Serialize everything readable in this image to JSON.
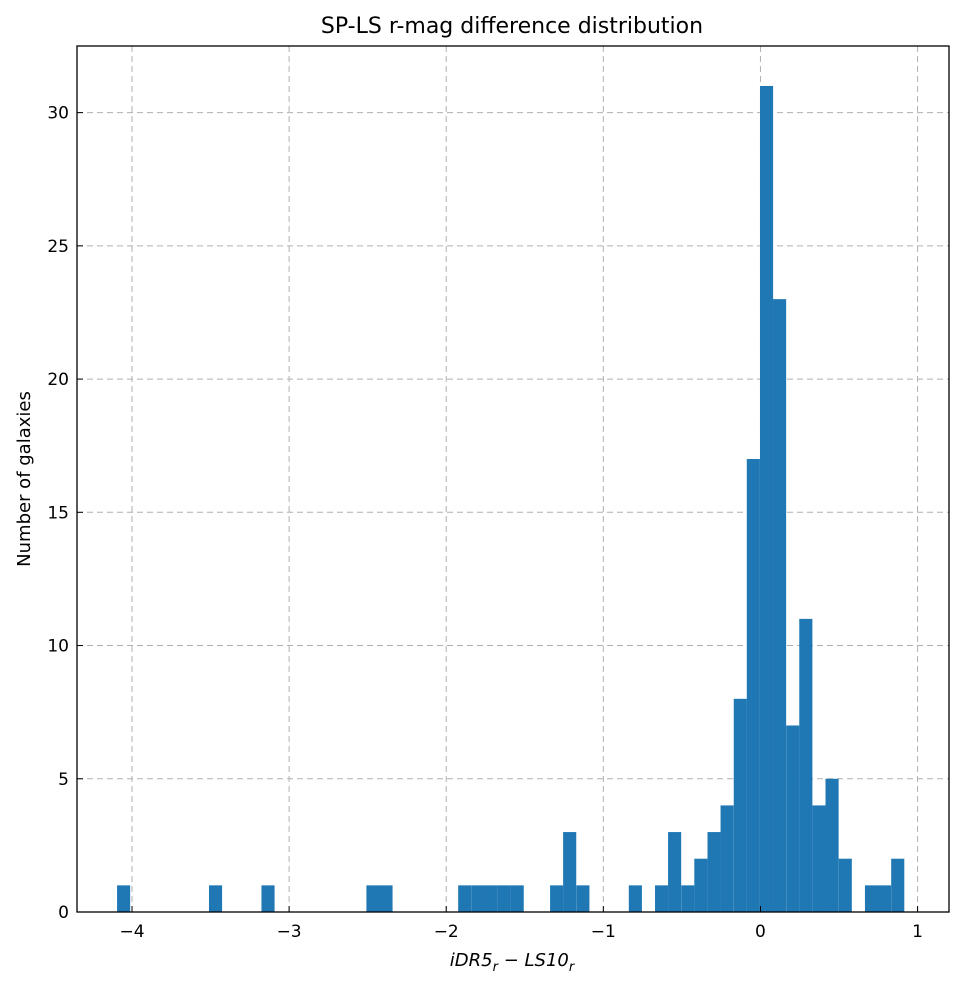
{
  "chart_data": {
    "type": "bar",
    "title": "SP-LS r-mag difference distribution",
    "xlabel_main": "iDR5",
    "xlabel_sub1": "r",
    "xlabel_minus": " − ",
    "xlabel_main2": "LS10",
    "xlabel_sub2": "r",
    "ylabel": "Number of galaxies",
    "xlim": [
      -4.35,
      1.2
    ],
    "ylim": [
      0,
      32.5
    ],
    "grid": true,
    "xticks": [
      -4,
      -3,
      -2,
      -1,
      0,
      1
    ],
    "xtick_labels": [
      "−4",
      "−3",
      "−2",
      "−1",
      "0",
      "1"
    ],
    "yticks": [
      0,
      5,
      10,
      15,
      20,
      25,
      30
    ],
    "ytick_labels": [
      "0",
      "5",
      "10",
      "15",
      "20",
      "25",
      "30"
    ],
    "bin_width": 0.0835,
    "bins": [
      {
        "start": -4.095,
        "count": 1
      },
      {
        "start": -3.51,
        "count": 1
      },
      {
        "start": -3.176,
        "count": 1
      },
      {
        "start": -2.508,
        "count": 1
      },
      {
        "start": -2.425,
        "count": 1
      },
      {
        "start": -1.924,
        "count": 1
      },
      {
        "start": -1.84,
        "count": 1
      },
      {
        "start": -1.757,
        "count": 1
      },
      {
        "start": -1.673,
        "count": 1
      },
      {
        "start": -1.59,
        "count": 1
      },
      {
        "start": -1.339,
        "count": 1
      },
      {
        "start": -1.256,
        "count": 3
      },
      {
        "start": -1.172,
        "count": 1
      },
      {
        "start": -0.838,
        "count": 1
      },
      {
        "start": -0.671,
        "count": 1
      },
      {
        "start": -0.588,
        "count": 3
      },
      {
        "start": -0.504,
        "count": 1
      },
      {
        "start": -0.421,
        "count": 2
      },
      {
        "start": -0.337,
        "count": 3
      },
      {
        "start": -0.254,
        "count": 4
      },
      {
        "start": -0.17,
        "count": 8
      },
      {
        "start": -0.087,
        "count": 17
      },
      {
        "start": -0.003,
        "count": 31
      },
      {
        "start": 0.08,
        "count": 23
      },
      {
        "start": 0.164,
        "count": 7
      },
      {
        "start": 0.247,
        "count": 11
      },
      {
        "start": 0.331,
        "count": 4
      },
      {
        "start": 0.414,
        "count": 5
      },
      {
        "start": 0.498,
        "count": 2
      },
      {
        "start": 0.665,
        "count": 1
      },
      {
        "start": 0.748,
        "count": 1
      },
      {
        "start": 0.832,
        "count": 2
      }
    ]
  }
}
